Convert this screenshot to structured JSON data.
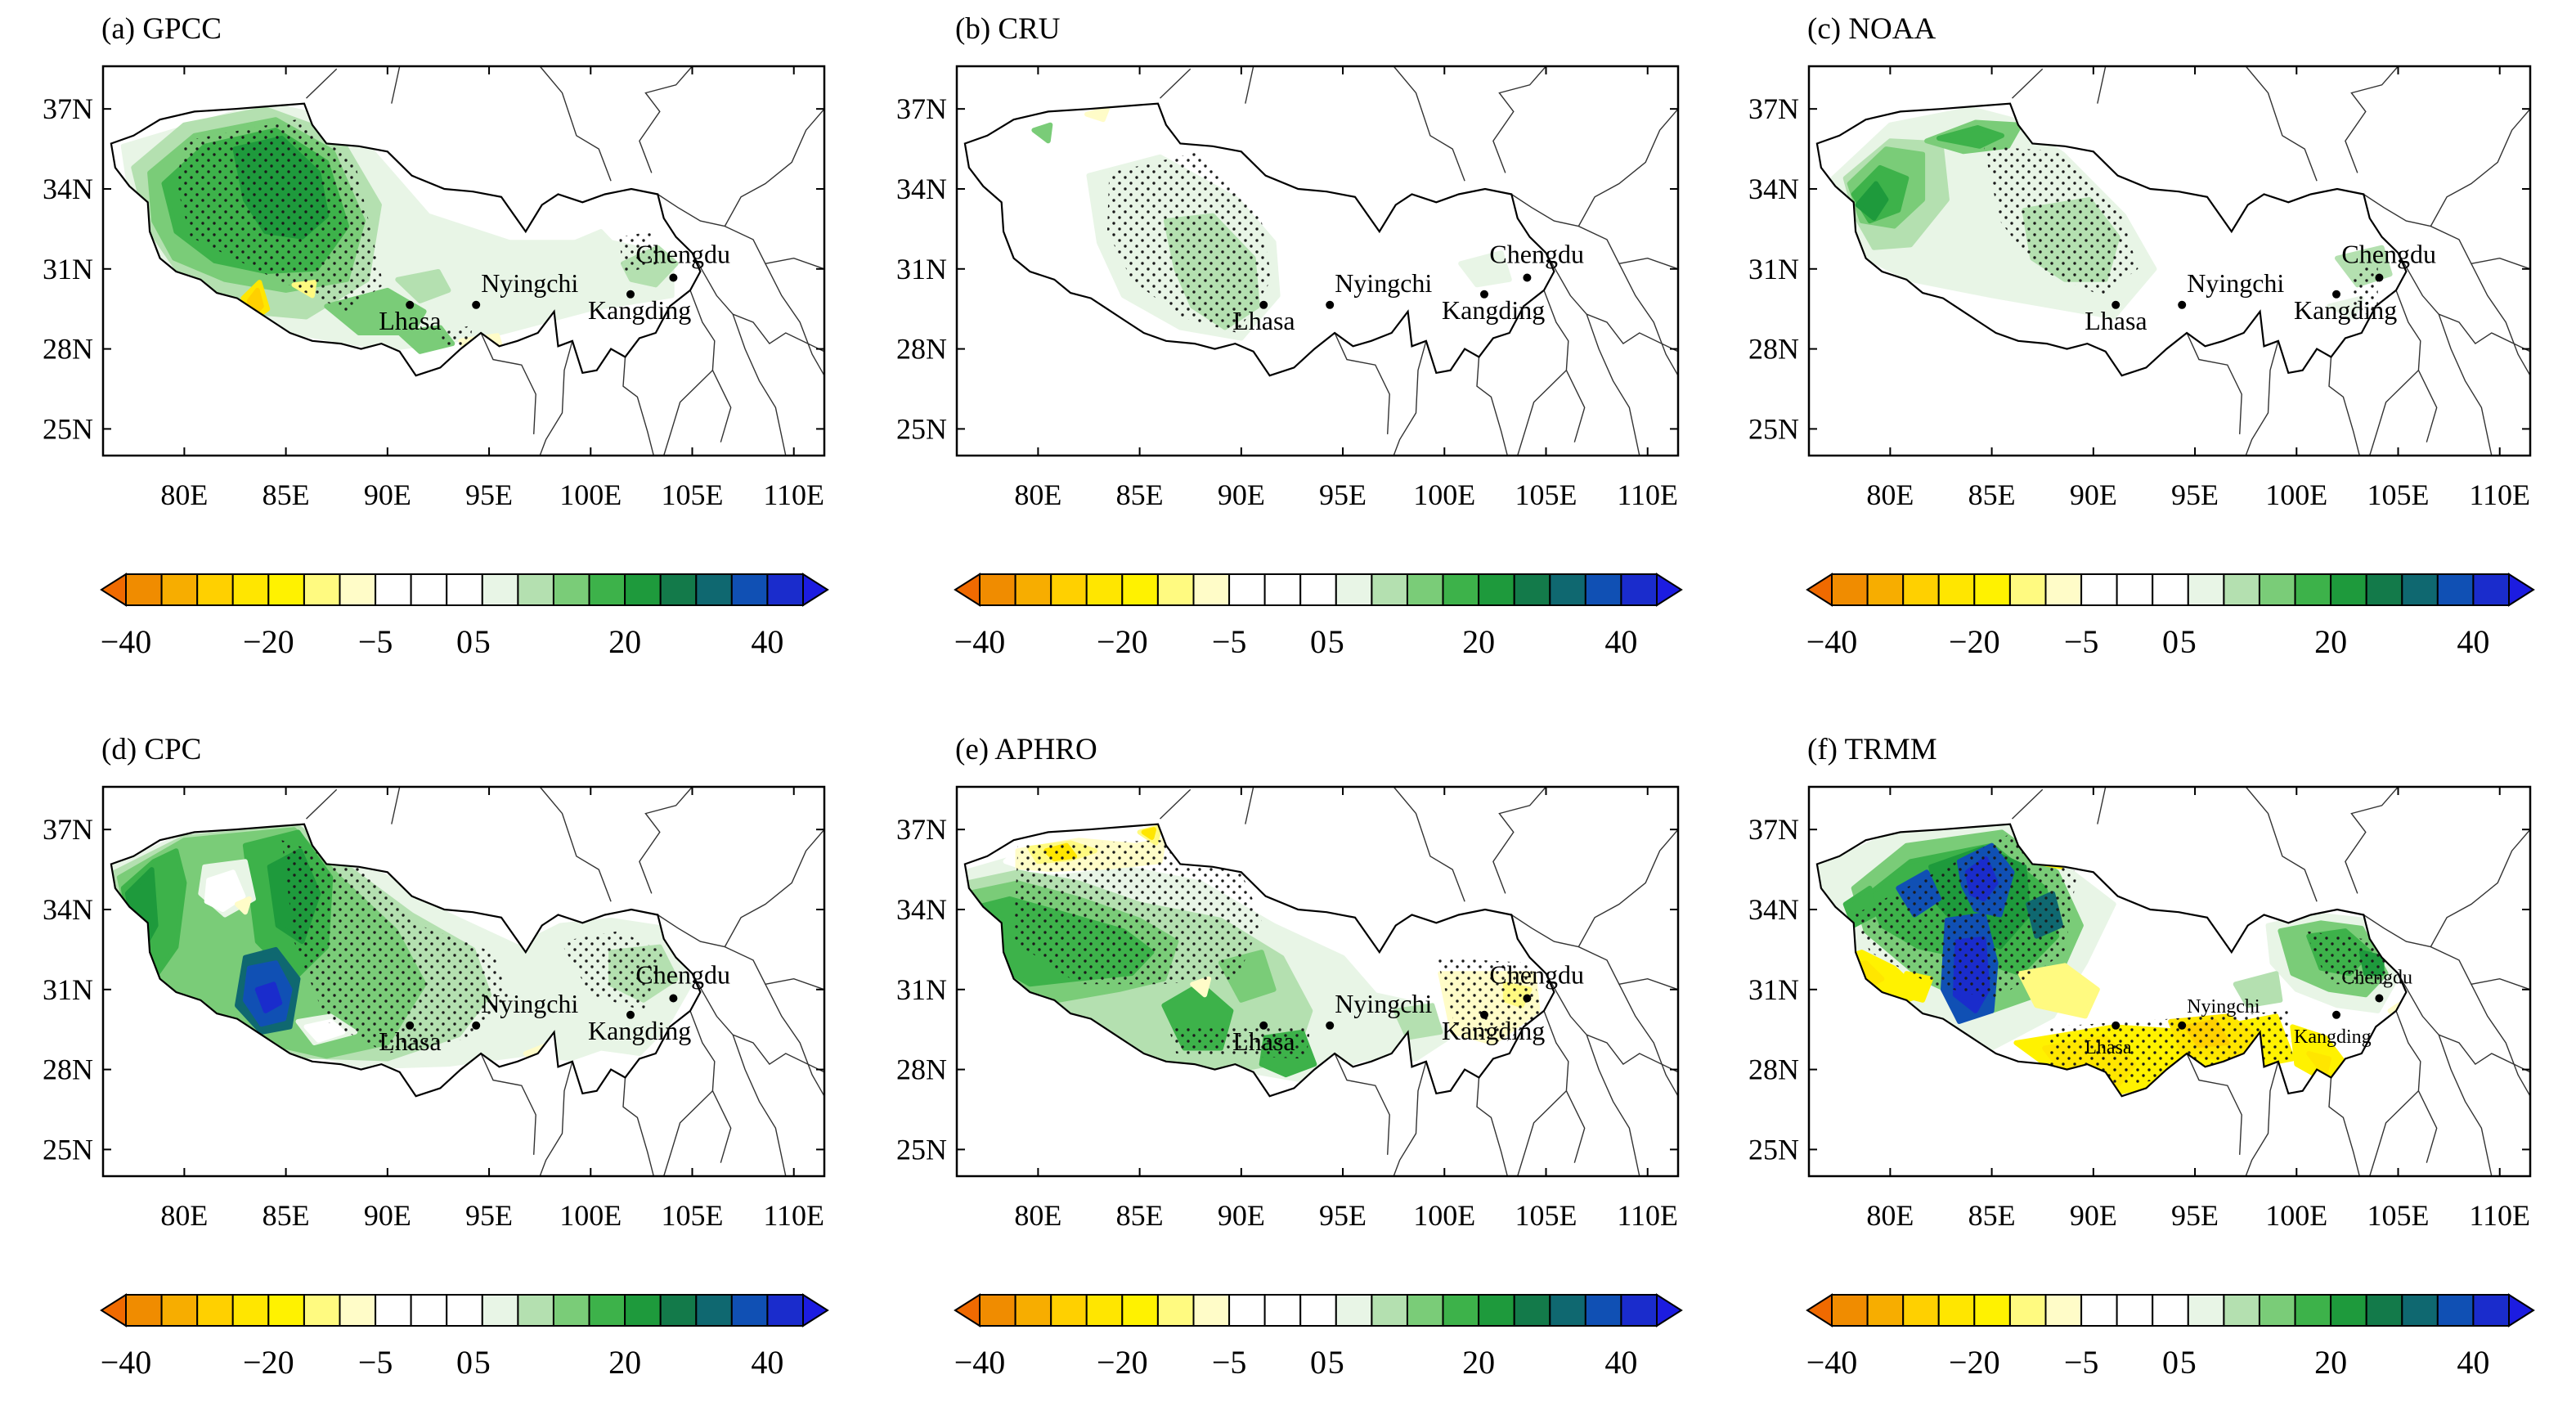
{
  "panels": [
    {
      "key": "a",
      "title": "(a) GPCC"
    },
    {
      "key": "b",
      "title": "(b) CRU"
    },
    {
      "key": "c",
      "title": "(c) NOAA"
    },
    {
      "key": "d",
      "title": "(d) CPC"
    },
    {
      "key": "e",
      "title": "(e) APHRO"
    },
    {
      "key": "f",
      "title": "(f) TRMM"
    }
  ],
  "axes": {
    "lat_ticks": [
      "37N",
      "34N",
      "31N",
      "28N",
      "25N"
    ],
    "lon_ticks": [
      "80E",
      "85E",
      "90E",
      "95E",
      "100E",
      "105E",
      "110E"
    ]
  },
  "cities": [
    {
      "name": "Lhasa",
      "lon": 91.1,
      "lat": 29.65
    },
    {
      "name": "Nyingchi",
      "lon": 94.36,
      "lat": 29.65
    },
    {
      "name": "Kangding",
      "lon": 101.96,
      "lat": 30.05
    },
    {
      "name": "Chengdu",
      "lon": 104.07,
      "lat": 30.67
    }
  ],
  "colorbar": {
    "ticks": [
      {
        "value": -40,
        "label": "−40"
      },
      {
        "value": -20,
        "label": "−20"
      },
      {
        "value": -5,
        "label": "−5"
      },
      {
        "value": 0,
        "label": "0"
      },
      {
        "value": 5,
        "label": "5"
      },
      {
        "value": 20,
        "label": "20"
      },
      {
        "value": 40,
        "label": "40"
      }
    ],
    "colors": [
      "#f08c00",
      "#f7ad00",
      "#ffd000",
      "#ffe600",
      "#fff200",
      "#fffa80",
      "#fffcc8",
      "#ffffff",
      "#ffffff",
      "#ffffff",
      "#e8f5e6",
      "#b4e0b0",
      "#7acc78",
      "#3db24a",
      "#1e9a3c",
      "#137a4a",
      "#0f6870",
      "#1050b4",
      "#1a2ccc"
    ],
    "left_arrow_color": "#f06a00",
    "right_arrow_color": "#1c1ce0"
  }
}
